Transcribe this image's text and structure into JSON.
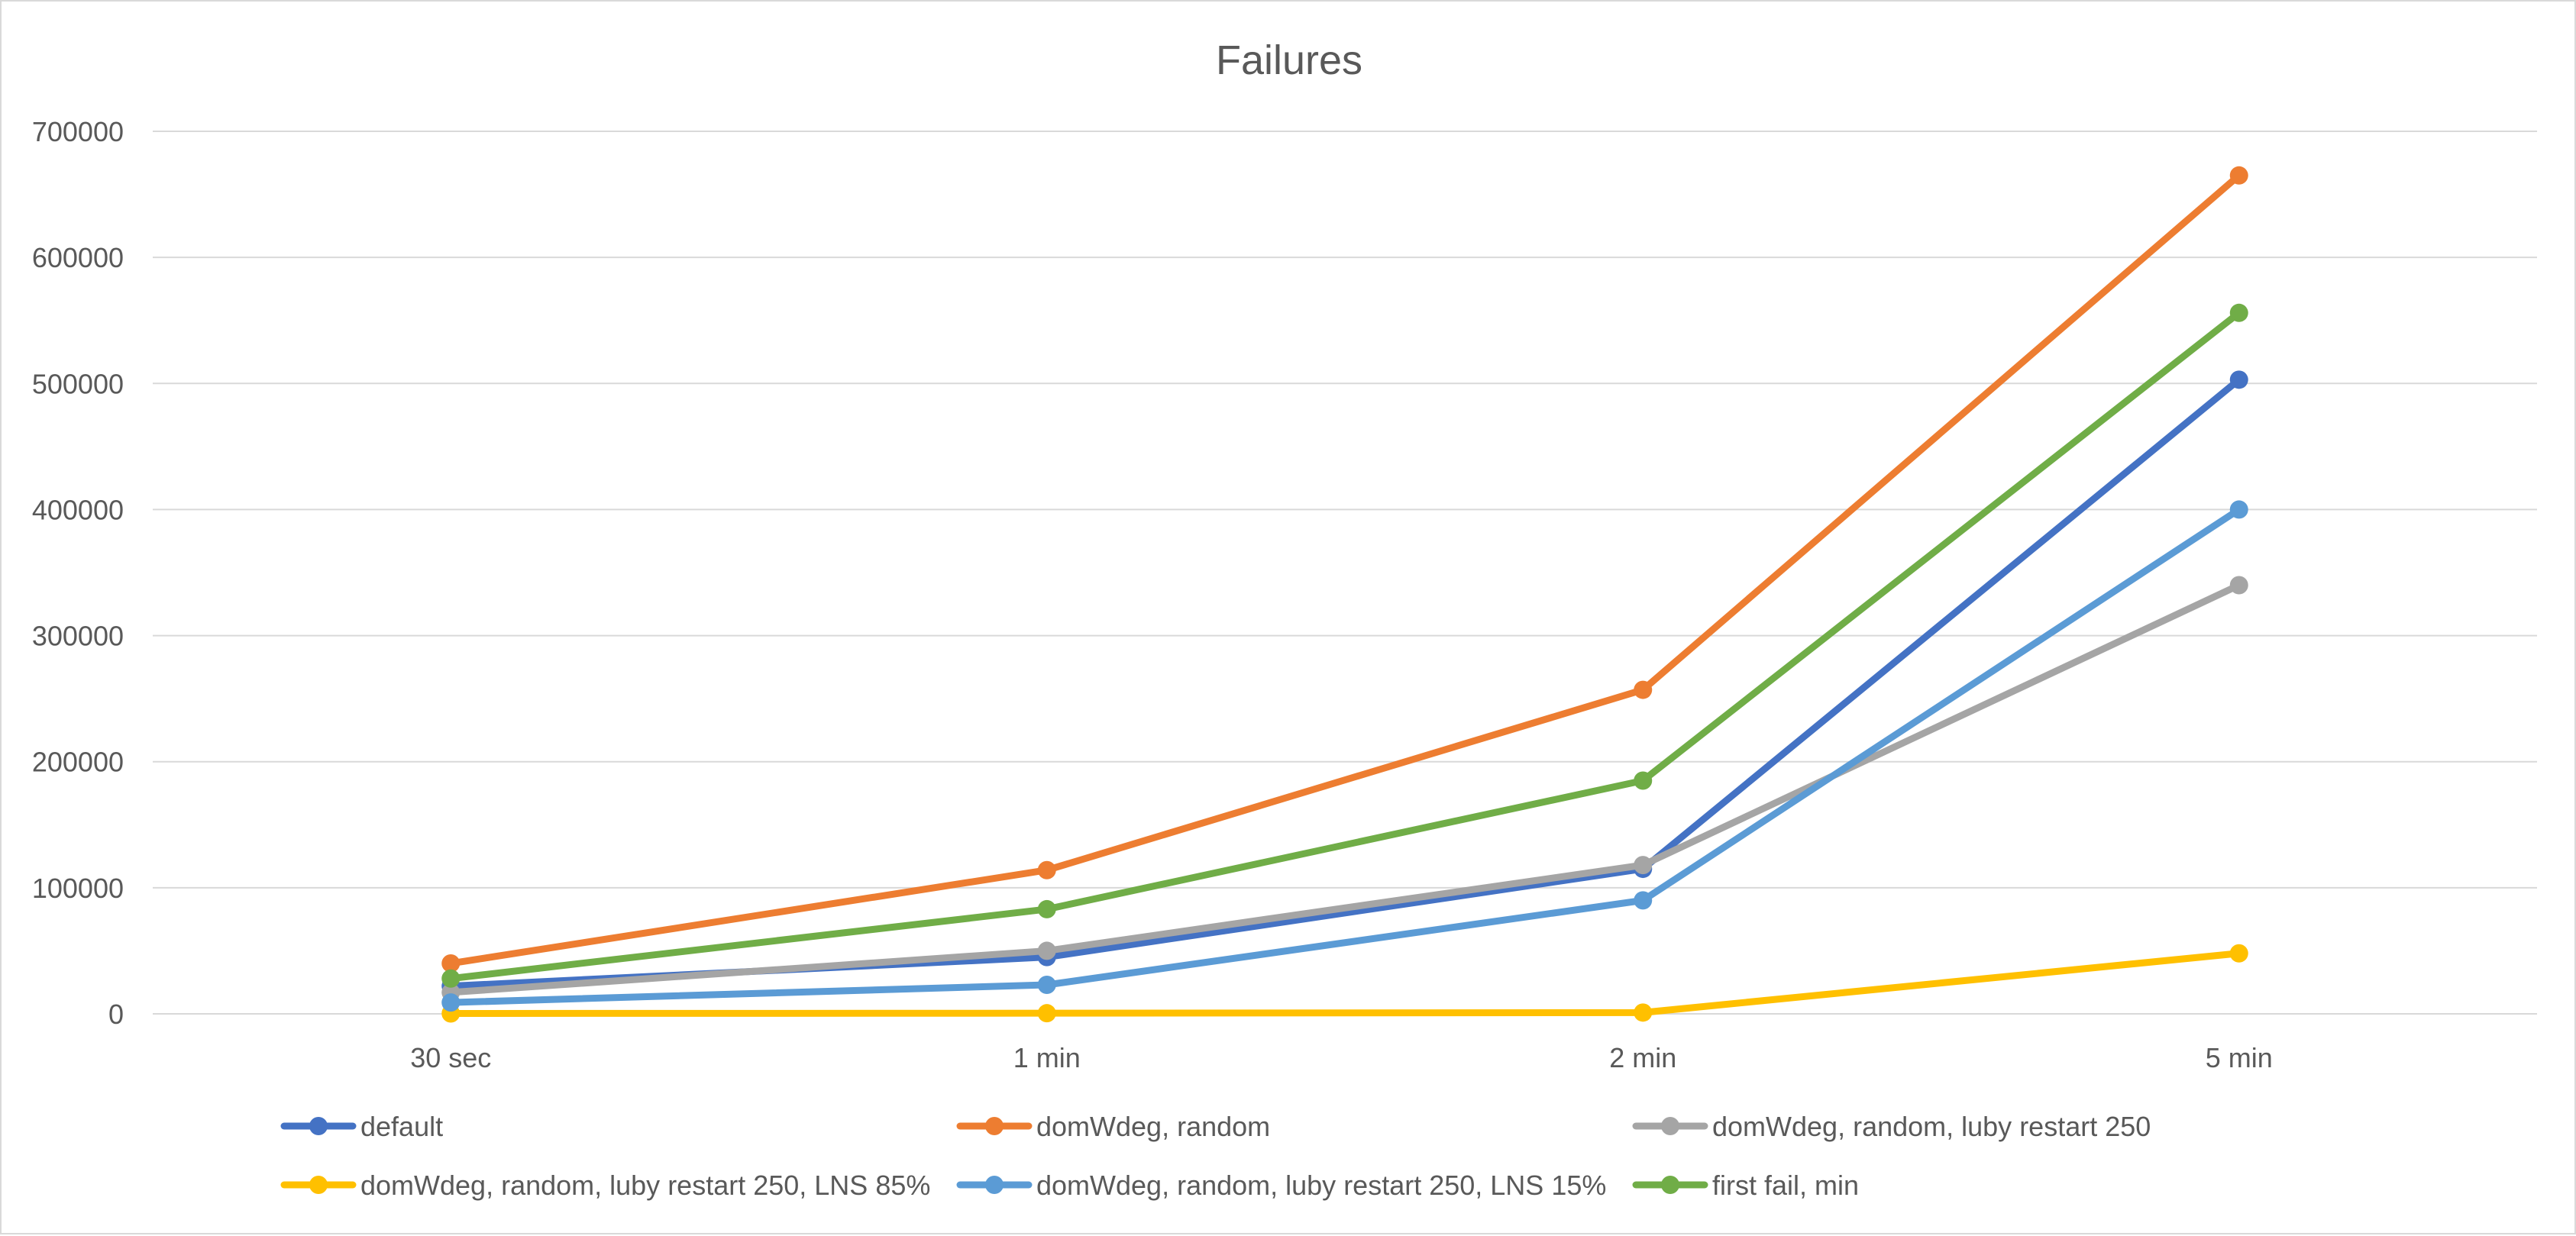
{
  "chart_data": {
    "type": "line",
    "title": "Failures",
    "xlabel": "",
    "ylabel": "",
    "categories": [
      "30 sec",
      "1 min",
      "2 min",
      "5 min"
    ],
    "ylim": [
      0,
      700000
    ],
    "yticks": [
      0,
      100000,
      200000,
      300000,
      400000,
      500000,
      600000,
      700000
    ],
    "ytick_labels": [
      "0",
      "100000",
      "200000",
      "300000",
      "400000",
      "500000",
      "600000",
      "700000"
    ],
    "grid": true,
    "legend_position": "bottom",
    "series": [
      {
        "name": "default",
        "color": "#4472c4",
        "values": [
          22000,
          45000,
          115000,
          503000
        ]
      },
      {
        "name": "domWdeg, random",
        "color": "#ed7d31",
        "values": [
          40000,
          114000,
          257000,
          665000
        ]
      },
      {
        "name": "domWdeg, random, luby restart 250",
        "color": "#a5a5a5",
        "values": [
          17000,
          50000,
          118000,
          340000
        ]
      },
      {
        "name": "domWdeg, random, luby restart 250, LNS 85%",
        "color": "#ffc000",
        "values": [
          300,
          500,
          1000,
          48000
        ]
      },
      {
        "name": "domWdeg, random, luby restart 250, LNS 15%",
        "color": "#5b9bd5",
        "values": [
          9000,
          23000,
          90000,
          400000
        ]
      },
      {
        "name": "first fail, min",
        "color": "#70ad47",
        "values": [
          28000,
          83000,
          185000,
          556000
        ]
      }
    ]
  }
}
